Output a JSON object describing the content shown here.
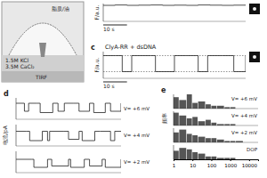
{
  "schematic": {
    "texts": [
      "脂质/油",
      "1.5M KCl",
      "3.5M CaCl₂",
      "TIRF"
    ]
  },
  "chart_data": [
    {
      "type": "line",
      "y_label": "F/a.u.",
      "color": "#222222",
      "x": [
        0,
        5,
        10,
        15,
        20,
        25,
        30,
        35,
        40,
        45,
        50,
        55,
        60
      ],
      "values": [
        0.9,
        0.92,
        0.9,
        0.91,
        0.92,
        0.9,
        0.91,
        0.9,
        0.92,
        0.91,
        0.9,
        0.91,
        0.9
      ],
      "xlim": [
        0,
        60
      ],
      "ylim": [
        0,
        1
      ],
      "tick_labels": false,
      "scale_bar": {
        "value": 10,
        "label": "10 s"
      }
    },
    {
      "type": "line",
      "panel": "c",
      "title": "ClyA-RR + dsDNA",
      "y_label": "F/a.u.",
      "color": "#222222",
      "x": [
        0,
        5,
        8,
        12,
        20,
        22,
        30,
        35,
        40,
        44,
        50,
        55,
        60
      ],
      "values": [
        0.85,
        0.85,
        0.25,
        0.85,
        0.85,
        0.25,
        0.85,
        0.85,
        0.25,
        0.85,
        0.85,
        0.25,
        0.85
      ],
      "reference_lines": [
        0.85,
        0.25
      ],
      "xlim": [
        0,
        60
      ],
      "ylim": [
        0,
        1
      ],
      "tick_labels": false,
      "scale_bar": {
        "value": 10,
        "label": "10 s"
      }
    },
    {
      "type": "line",
      "panel": "d",
      "annotation": "V= +6 mV",
      "color": "#222222",
      "x": [
        0,
        0.8,
        1.2,
        2,
        2.3,
        3.5,
        4,
        4.6,
        5.5,
        6,
        7,
        7.4,
        8.5,
        9,
        10
      ],
      "values": [
        60,
        30,
        60,
        60,
        25,
        60,
        30,
        60,
        60,
        30,
        60,
        25,
        60,
        30,
        60
      ],
      "xlim": [
        0,
        10
      ],
      "ylim": [
        0,
        80
      ],
      "tick_labels": false
    },
    {
      "type": "line",
      "y_label": "电流/pA",
      "annotation": "V= +4 mV",
      "color": "#222222",
      "x": [
        0,
        1,
        1.3,
        2.5,
        3,
        3.2,
        4.5,
        5,
        6,
        6.3,
        7.5,
        8,
        9,
        9.4,
        10
      ],
      "values": [
        55,
        55,
        20,
        55,
        20,
        55,
        55,
        25,
        55,
        20,
        55,
        55,
        20,
        55,
        55
      ],
      "xlim": [
        0,
        10
      ],
      "ylim": [
        0,
        80
      ],
      "tick_labels": false
    },
    {
      "type": "line",
      "annotation": "V= +2 mV",
      "color": "#222222",
      "x": [
        0,
        1.5,
        1.7,
        3,
        3.4,
        5,
        5.2,
        6.5,
        7,
        8.2,
        8.5,
        10
      ],
      "values": [
        50,
        50,
        20,
        50,
        25,
        50,
        20,
        50,
        25,
        50,
        20,
        50
      ],
      "xlim": [
        0,
        10
      ],
      "ylim": [
        0,
        80
      ],
      "tick_labels": false
    },
    {
      "type": "bar",
      "panel": "e",
      "annotation": "V= +6 mV",
      "color": "#555555",
      "log": "x",
      "bins": [
        1,
        2,
        5,
        10,
        20,
        50,
        100,
        200,
        500,
        1000,
        2000,
        5000,
        10000
      ],
      "counts": [
        8,
        6,
        10,
        4,
        5,
        3,
        2,
        2,
        1,
        1,
        0,
        0
      ],
      "xlim": [
        1,
        30000
      ],
      "ylim": [
        0,
        10
      ],
      "tick_labels": false
    },
    {
      "type": "bar",
      "annotation": "V= +4 mV",
      "color": "#555555",
      "log": "x",
      "bins": [
        1,
        2,
        5,
        10,
        20,
        50,
        100,
        200,
        500,
        1000,
        2000,
        5000,
        10000
      ],
      "counts": [
        9,
        7,
        5,
        6,
        3,
        4,
        2,
        1,
        1,
        1,
        0,
        0
      ],
      "xlim": [
        1,
        30000
      ],
      "ylim": [
        0,
        10
      ],
      "y_label": "频率",
      "tick_labels": false
    },
    {
      "type": "bar",
      "annotation": "V= +2 mV",
      "color": "#555555",
      "log": "x",
      "bins": [
        1,
        2,
        5,
        10,
        20,
        50,
        100,
        200,
        500,
        1000,
        2000,
        5000,
        10000
      ],
      "counts": [
        7,
        9,
        6,
        5,
        4,
        3,
        3,
        2,
        1,
        1,
        1,
        0
      ],
      "xlim": [
        1,
        30000
      ],
      "ylim": [
        0,
        10
      ],
      "tick_labels": false
    },
    {
      "type": "bar",
      "annotation": "DOP",
      "color": "#555555",
      "log": "x",
      "bins": [
        1,
        2,
        5,
        10,
        20,
        50,
        100,
        200,
        500,
        1000,
        2000,
        5000,
        10000
      ],
      "counts": [
        6,
        8,
        7,
        5,
        4,
        2,
        2,
        1,
        1,
        1,
        0,
        0
      ],
      "xlim": [
        1,
        30000
      ],
      "ylim": [
        0,
        10
      ],
      "xticks": [
        1,
        10,
        100,
        1000,
        10000
      ],
      "tick_labels": "x"
    }
  ]
}
